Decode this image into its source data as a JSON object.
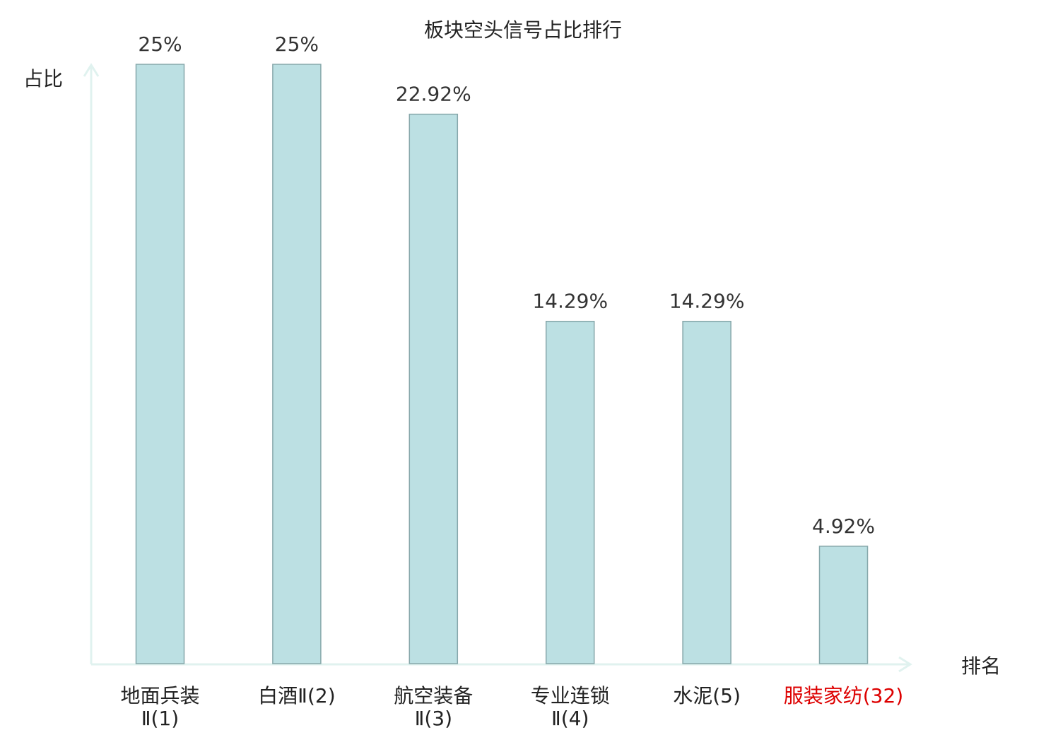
{
  "chart_data": {
    "type": "bar",
    "title": "板块空头信号占比排行",
    "ylabel": "占比",
    "xlabel": "排名",
    "ylim": [
      0,
      25
    ],
    "grid": false,
    "legend": "none",
    "bar_color": "#bce0e3",
    "bar_edge_color": "#86a7aa",
    "axis_color": "#e0f2ef",
    "highlight_color": "#dd0000",
    "categories": [
      {
        "lines": [
          "地面兵装",
          "Ⅱ(1)"
        ],
        "highlight": false
      },
      {
        "lines": [
          "白酒Ⅱ(2)"
        ],
        "highlight": false
      },
      {
        "lines": [
          "航空装备",
          "Ⅱ(3)"
        ],
        "highlight": false
      },
      {
        "lines": [
          "专业连锁",
          "Ⅱ(4)"
        ],
        "highlight": false
      },
      {
        "lines": [
          "水泥(5)"
        ],
        "highlight": false
      },
      {
        "lines": [
          "服装家纺(32)"
        ],
        "highlight": true
      }
    ],
    "values": [
      25,
      25,
      22.92,
      14.29,
      14.29,
      4.92
    ],
    "value_labels": [
      "25%",
      "25%",
      "22.92%",
      "14.29%",
      "14.29%",
      "4.92%"
    ]
  }
}
